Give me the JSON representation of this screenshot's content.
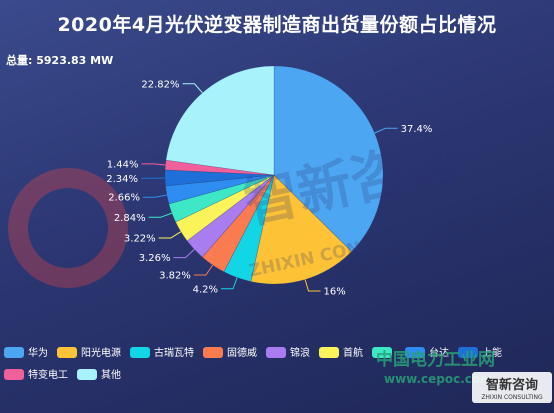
{
  "chart_data": {
    "type": "pie",
    "title": "2020年4月光伏逆变器制造商出货量份额占比情况",
    "subtitle": "总量: 5923.83 MW",
    "slices": [
      {
        "name": "华为",
        "value": 37.4,
        "label": "37.4%",
        "color": "#4da6f2"
      },
      {
        "name": "阳光电源",
        "value": 16,
        "label": "16%",
        "color": "#fdc235"
      },
      {
        "name": "古瑞瓦特",
        "value": 4.2,
        "label": "4.2%",
        "color": "#12d6e6"
      },
      {
        "name": "固德威",
        "value": 3.82,
        "label": "3.82%",
        "color": "#fb7b50"
      },
      {
        "name": "锦浪",
        "value": 3.26,
        "label": "3.26%",
        "color": "#a97cf0"
      },
      {
        "name": "首航",
        "value": 3.22,
        "label": "3.22%",
        "color": "#fbf35a"
      },
      {
        "name": "",
        "value": 2.84,
        "label": "2.84%",
        "color": "#3ee8c6"
      },
      {
        "name": "",
        "value": 2.66,
        "label": "2.66%",
        "color": "#2f8cf0"
      },
      {
        "name": "",
        "value": 2.34,
        "label": "2.34%",
        "color": "#1e6fd8"
      },
      {
        "name": "特变电工",
        "value": 1.44,
        "label": "1.44%",
        "color": "#f0609a"
      },
      {
        "name": "其他",
        "value": 22.82,
        "label": "22.82%",
        "color": "#a8f3fb"
      }
    ],
    "legend": {
      "placement": "bottom",
      "visible_labels": [
        "华为",
        "阳光电源",
        "古瑞瓦特",
        "固德威",
        "锦浪",
        "首航",
        "",
        "台达",
        "上能",
        "特变电工",
        "其他"
      ]
    }
  },
  "watermark": {
    "main_text": "智新咨询",
    "main_text_en": "ZHIXIN CONSULTING",
    "site_cn": "中国电力工业网",
    "site_url": "www.cepoc.com",
    "brand_cn": "智新咨询",
    "brand_en": "ZHIXIN CONSULTING"
  }
}
